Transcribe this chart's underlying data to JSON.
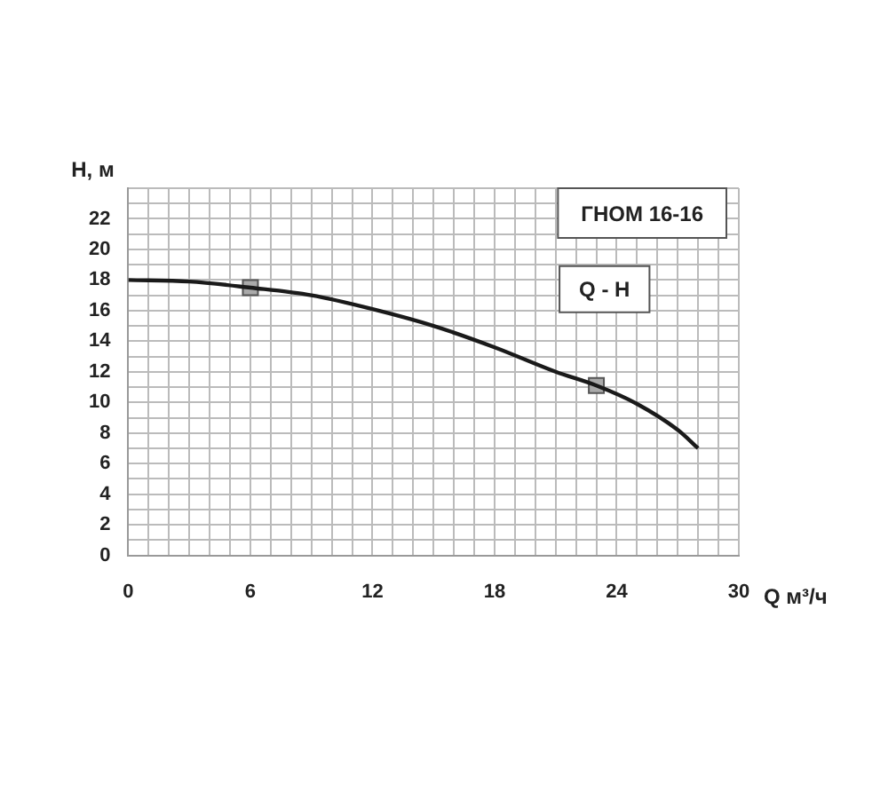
{
  "chart_data": {
    "type": "line",
    "title": "ГНОМ 16-16",
    "xlabel": "Q м³/ч",
    "ylabel": "H, м",
    "xlim": [
      0,
      30
    ],
    "ylim": [
      0,
      24
    ],
    "xticks": [
      0,
      {
        "value": 1,
        "label": null
      },
      {
        "value": 2,
        "label": null
      },
      {
        "value": 3,
        "label": null
      },
      {
        "value": 4,
        "label": null
      },
      {
        "value": 5,
        "label": null
      },
      6,
      {
        "value": 7,
        "label": null
      },
      {
        "value": 8,
        "label": null
      },
      {
        "value": 9,
        "label": null
      },
      {
        "value": 10,
        "label": null
      },
      {
        "value": 11,
        "label": null
      },
      12,
      {
        "value": 13,
        "label": null
      },
      {
        "value": 14,
        "label": null
      },
      {
        "value": 15,
        "label": null
      },
      {
        "value": 16,
        "label": null
      },
      {
        "value": 17,
        "label": null
      },
      18,
      {
        "value": 19,
        "label": null
      },
      {
        "value": 20,
        "label": null
      },
      {
        "value": 21,
        "label": null
      },
      {
        "value": 22,
        "label": null
      },
      {
        "value": 23,
        "label": null
      },
      24,
      {
        "value": 25,
        "label": null
      },
      {
        "value": 26,
        "label": null
      },
      {
        "value": 27,
        "label": null
      },
      {
        "value": 28,
        "label": null
      },
      {
        "value": 29,
        "label": null
      },
      30
    ],
    "yticks": [
      0,
      {
        "value": 1,
        "label": null
      },
      2,
      {
        "value": 3,
        "label": null
      },
      4,
      {
        "value": 5,
        "label": null
      },
      6,
      {
        "value": 7,
        "label": null
      },
      8,
      {
        "value": 9,
        "label": null
      },
      10,
      {
        "value": 11,
        "label": null
      },
      12,
      {
        "value": 13,
        "label": null
      },
      14,
      {
        "value": 15,
        "label": null
      },
      16,
      {
        "value": 17,
        "label": null
      },
      18,
      {
        "value": 19,
        "label": null
      },
      20,
      {
        "value": 21,
        "label": null
      },
      22,
      {
        "value": 23,
        "label": null
      },
      {
        "value": 24,
        "label": null
      }
    ],
    "grid": true,
    "legend": false,
    "marker": "none",
    "line_style": "solid",
    "series": [
      {
        "name": "Q - H",
        "color": "#1a1a1a",
        "x": [
          0,
          3,
          6,
          9,
          12,
          15,
          18,
          21,
          23,
          25,
          27,
          28
        ],
        "values": [
          18,
          17.9,
          17.5,
          17,
          16.1,
          15,
          13.6,
          12,
          11.1,
          9.9,
          8.2,
          7
        ]
      },
      {
        "type": "scatter",
        "marker": "square",
        "color": "#aaaaaa",
        "x": [
          6,
          23
        ],
        "values": [
          17.5,
          11.1
        ]
      }
    ]
  }
}
